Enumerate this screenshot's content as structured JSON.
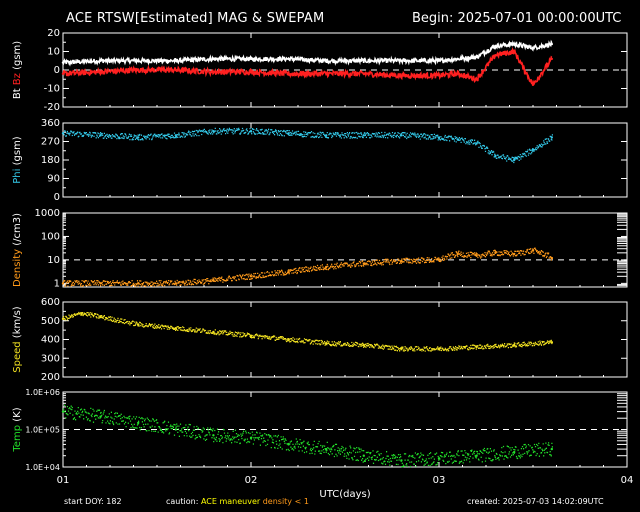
{
  "header": {
    "title": "ACE RTSW[Estimated] MAG & SWEPAM",
    "begin": "Begin: 2025-07-01 00:00:00UTC"
  },
  "footer": {
    "start_doy": "start DOY: 182",
    "caution_label": "caution:",
    "caution_maneuver": "ACE maneuver",
    "caution_density": "density < 1",
    "created": "created: 2025-07-03 14:02:09UTC"
  },
  "colors": {
    "bt": "#ffffff",
    "bz": "#ff2020",
    "phi": "#33c8e8",
    "density": "#ff9a1a",
    "speed": "#f0e020",
    "temp": "#22e02a",
    "maneuver": "#ffff00",
    "density_low": "#ff9a1a"
  },
  "chart_data": [
    {
      "type": "line",
      "panel": "bt-bz",
      "ylabel_parts": [
        "Bt",
        "Bz",
        "(gsm)"
      ],
      "ylim": [
        -20,
        20
      ],
      "yticks": [
        "20",
        "10",
        "0",
        "-10",
        "-20"
      ],
      "ytick_values": [
        20,
        10,
        0,
        -10,
        -20
      ],
      "dashed_line": 0,
      "series": [
        {
          "name": "Bt",
          "x": [
            1.0,
            1.2,
            1.4,
            1.6,
            1.8,
            2.0,
            2.2,
            2.4,
            2.6,
            2.8,
            3.0,
            3.1,
            3.2,
            3.3,
            3.4,
            3.5,
            3.6
          ],
          "values": [
            4,
            5,
            5,
            5,
            6,
            6,
            6,
            5,
            5,
            5,
            5,
            6,
            7,
            13,
            14,
            12,
            14
          ]
        },
        {
          "name": "Bz",
          "x": [
            1.0,
            1.2,
            1.4,
            1.6,
            1.8,
            2.0,
            2.2,
            2.4,
            2.6,
            2.8,
            3.0,
            3.1,
            3.2,
            3.3,
            3.4,
            3.5,
            3.6
          ],
          "values": [
            -2,
            -1,
            0,
            0,
            -1,
            -1,
            -2,
            -2,
            -2,
            -3,
            -3,
            -2,
            -5,
            8,
            10,
            -8,
            6
          ]
        }
      ]
    },
    {
      "type": "scatter",
      "panel": "phi",
      "ylabel": "Phi (gsm)",
      "ylim": [
        0,
        360
      ],
      "yticks": [
        "360",
        "270",
        "180",
        "90",
        "0"
      ],
      "ytick_values": [
        360,
        270,
        180,
        90,
        0
      ],
      "series": [
        {
          "name": "Phi",
          "x": [
            1.0,
            1.2,
            1.4,
            1.6,
            1.8,
            2.0,
            2.2,
            2.4,
            2.6,
            2.8,
            3.0,
            3.1,
            3.2,
            3.3,
            3.4,
            3.5,
            3.6
          ],
          "values": [
            310,
            300,
            290,
            300,
            320,
            320,
            310,
            300,
            300,
            300,
            290,
            280,
            260,
            200,
            180,
            230,
            290
          ]
        }
      ]
    },
    {
      "type": "scatter",
      "panel": "density",
      "ylabel": "Density (/cm3)",
      "scale": "log",
      "ylim": [
        0.7,
        1000
      ],
      "yticks": [
        "1000",
        "100",
        "10",
        "1"
      ],
      "ytick_values": [
        1000,
        100,
        10,
        1
      ],
      "dashed_line": 10,
      "series": [
        {
          "name": "Density",
          "x": [
            1.0,
            1.2,
            1.4,
            1.6,
            1.8,
            2.0,
            2.2,
            2.4,
            2.6,
            2.8,
            3.0,
            3.1,
            3.2,
            3.3,
            3.4,
            3.5,
            3.6
          ],
          "values": [
            1,
            1,
            1,
            1,
            1.3,
            2,
            3,
            5,
            7,
            9,
            10,
            18,
            15,
            20,
            18,
            25,
            12
          ]
        }
      ]
    },
    {
      "type": "scatter",
      "panel": "speed",
      "ylabel": "Speed (km/s)",
      "ylim": [
        200,
        600
      ],
      "yticks": [
        "600",
        "500",
        "400",
        "300",
        "200"
      ],
      "ytick_values": [
        600,
        500,
        400,
        300,
        200
      ],
      "series": [
        {
          "name": "Speed",
          "x": [
            1.0,
            1.1,
            1.2,
            1.4,
            1.6,
            1.8,
            2.0,
            2.2,
            2.4,
            2.6,
            2.8,
            3.0,
            3.2,
            3.4,
            3.6
          ],
          "values": [
            510,
            540,
            520,
            480,
            460,
            440,
            420,
            400,
            380,
            370,
            350,
            350,
            360,
            370,
            385
          ]
        }
      ]
    },
    {
      "type": "scatter",
      "panel": "temp",
      "ylabel": "Temp (K)",
      "scale": "log",
      "ylim": [
        10000,
        1000000
      ],
      "yticks": [
        "1.0E+06",
        "1.0E+05",
        "1.0E+04"
      ],
      "ytick_values": [
        1000000,
        100000,
        10000
      ],
      "dashed_line": 100000,
      "xlabel": "UTC(days)",
      "xticks": [
        "01",
        "02",
        "03",
        "04"
      ],
      "xtick_values": [
        1,
        2,
        3,
        4
      ],
      "xlim": [
        1,
        4
      ],
      "series": [
        {
          "name": "Temp",
          "x": [
            1.0,
            1.2,
            1.4,
            1.6,
            1.8,
            2.0,
            2.2,
            2.4,
            2.6,
            2.8,
            3.0,
            3.2,
            3.4,
            3.6
          ],
          "values": [
            300000,
            220000,
            150000,
            100000,
            70000,
            60000,
            40000,
            30000,
            20000,
            15000,
            17000,
            20000,
            25000,
            30000
          ]
        }
      ]
    }
  ]
}
